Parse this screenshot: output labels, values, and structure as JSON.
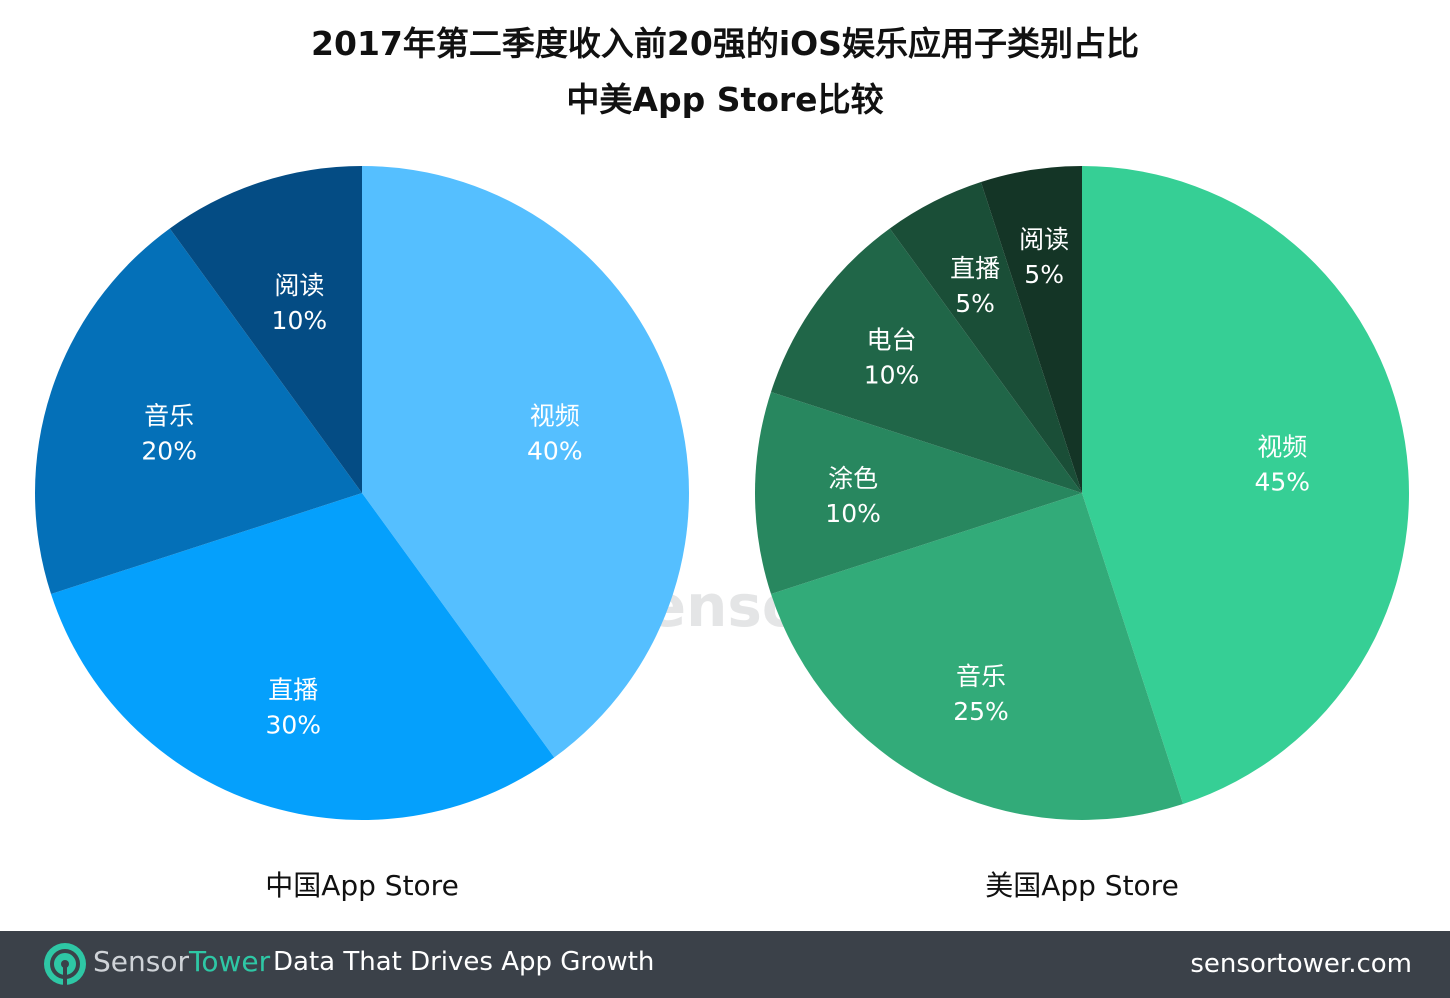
{
  "title": {
    "line1": "2017年第二季度收入前20强的iOS娱乐应用子类别占比",
    "line2": "中美App Store比较"
  },
  "watermark": {
    "text": "SensorTower"
  },
  "footer": {
    "brand_part1": "Sensor",
    "brand_part2": "Tower",
    "tagline": "Data That Drives App Growth",
    "website": "sensortower.com",
    "bg_color": "#3b4149",
    "brand_accent_color": "#2ec7a5",
    "logo_icon": "sensortower-logo-icon"
  },
  "chart_data": [
    {
      "type": "pie",
      "caption": "中国App Store",
      "start": "12 o'clock",
      "direction": "clockwise",
      "slices": [
        {
          "label": "视频",
          "value": 40,
          "value_label": "40%",
          "color": "#55bfff"
        },
        {
          "label": "直播",
          "value": 30,
          "value_label": "30%",
          "color": "#05a0fc"
        },
        {
          "label": "音乐",
          "value": 20,
          "value_label": "20%",
          "color": "#0470b8"
        },
        {
          "label": "阅读",
          "value": 10,
          "value_label": "10%",
          "color": "#044c84"
        }
      ]
    },
    {
      "type": "pie",
      "caption": "美国App Store",
      "start": "12 o'clock",
      "direction": "clockwise",
      "slices": [
        {
          "label": "视频",
          "value": 45,
          "value_label": "45%",
          "color": "#36cf95"
        },
        {
          "label": "音乐",
          "value": 25,
          "value_label": "25%",
          "color": "#32ab79"
        },
        {
          "label": "涂色",
          "value": 10,
          "value_label": "10%",
          "color": "#28875f"
        },
        {
          "label": "电台",
          "value": 10,
          "value_label": "10%",
          "color": "#206648"
        },
        {
          "label": "直播",
          "value": 5,
          "value_label": "5%",
          "color": "#1a4e37"
        },
        {
          "label": "阅读",
          "value": 5,
          "value_label": "5%",
          "color": "#143526"
        }
      ]
    }
  ]
}
